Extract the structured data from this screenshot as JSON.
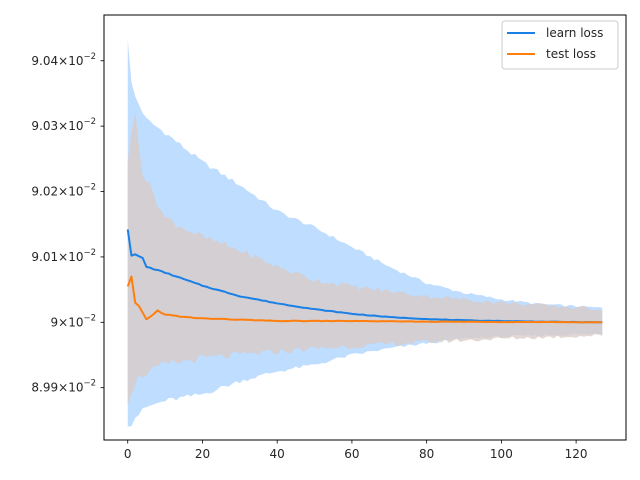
{
  "chart_data": {
    "type": "line",
    "title": "",
    "xlabel": "",
    "ylabel": "",
    "xlim": [
      -6.35,
      133.35
    ],
    "ylim": [
      0.08982,
      0.09047
    ],
    "x_ticks": [
      {
        "value": 0,
        "label": "0"
      },
      {
        "value": 20,
        "label": "20"
      },
      {
        "value": 40,
        "label": "40"
      },
      {
        "value": 60,
        "label": "60"
      },
      {
        "value": 80,
        "label": "80"
      },
      {
        "value": 100,
        "label": "100"
      },
      {
        "value": 120,
        "label": "120"
      }
    ],
    "y_ticks": [
      {
        "value": 0.0899,
        "mantissa": "8.99",
        "exp": "−2"
      },
      {
        "value": 0.09,
        "mantissa": "9",
        "exp": "−2"
      },
      {
        "value": 0.0901,
        "mantissa": "9.01",
        "exp": "−2"
      },
      {
        "value": 0.0902,
        "mantissa": "9.02",
        "exp": "−2"
      },
      {
        "value": 0.0903,
        "mantissa": "9.03",
        "exp": "−2"
      },
      {
        "value": 0.0904,
        "mantissa": "9.04",
        "exp": "−2"
      }
    ],
    "x_start": 0,
    "x_end": 127,
    "series": [
      {
        "name": "learn loss",
        "color": "#1f77b4",
        "line_color": "#1a80e6",
        "band_color": "#a9d2ff",
        "knots": [
          [
            0,
            0.090142
          ],
          [
            1,
            0.090102
          ],
          [
            2,
            0.090104
          ],
          [
            4,
            0.090098
          ],
          [
            5,
            0.090085
          ],
          [
            10,
            0.090076
          ],
          [
            20,
            0.090056
          ],
          [
            30,
            0.09004
          ],
          [
            40,
            0.090029
          ],
          [
            50,
            0.09002
          ],
          [
            60,
            0.090013
          ],
          [
            70,
            0.090008
          ],
          [
            80,
            0.090005
          ],
          [
            90,
            0.090003
          ],
          [
            100,
            0.090002
          ],
          [
            110,
            0.090001
          ],
          [
            127,
            0.09
          ]
        ],
        "band_knots": [
          [
            0,
            0.090435,
            0.089845
          ],
          [
            1,
            0.090365,
            0.089845
          ],
          [
            2,
            0.090345,
            0.089855
          ],
          [
            5,
            0.09031,
            0.08987
          ],
          [
            10,
            0.09029,
            0.08988
          ],
          [
            20,
            0.090245,
            0.08989
          ],
          [
            30,
            0.09021,
            0.08991
          ],
          [
            40,
            0.09017,
            0.089925
          ],
          [
            50,
            0.090145,
            0.089935
          ],
          [
            60,
            0.090115,
            0.08995
          ],
          [
            70,
            0.090085,
            0.08996
          ],
          [
            80,
            0.09006,
            0.089968
          ],
          [
            90,
            0.090045,
            0.089975
          ],
          [
            100,
            0.090035,
            0.089978
          ],
          [
            110,
            0.090028,
            0.08998
          ],
          [
            127,
            0.090022,
            0.089982
          ]
        ]
      },
      {
        "name": "test loss",
        "color": "#ff7f0e",
        "line_color": "#ff7f0e",
        "band_color": "#d9c9c4",
        "knots": [
          [
            0,
            0.090055
          ],
          [
            1,
            0.09007
          ],
          [
            2,
            0.09003
          ],
          [
            3,
            0.090025
          ],
          [
            5,
            0.090005
          ],
          [
            6,
            0.090008
          ],
          [
            8,
            0.090018
          ],
          [
            10,
            0.090012
          ],
          [
            15,
            0.090008
          ],
          [
            20,
            0.090006
          ],
          [
            30,
            0.090004
          ],
          [
            40,
            0.090002
          ],
          [
            60,
            0.090002
          ],
          [
            80,
            0.090001
          ],
          [
            127,
            0.09
          ]
        ],
        "band_knots": [
          [
            0,
            0.09025,
            0.08988
          ],
          [
            2,
            0.09032,
            0.08991
          ],
          [
            4,
            0.09023,
            0.08992
          ],
          [
            10,
            0.09016,
            0.089935
          ],
          [
            20,
            0.09013,
            0.089945
          ],
          [
            30,
            0.09011,
            0.08995
          ],
          [
            40,
            0.090085,
            0.089955
          ],
          [
            50,
            0.090065,
            0.08996
          ],
          [
            60,
            0.090055,
            0.089963
          ],
          [
            80,
            0.09004,
            0.08997
          ],
          [
            100,
            0.09003,
            0.089975
          ],
          [
            127,
            0.09002,
            0.08998
          ]
        ]
      }
    ],
    "legend": {
      "position": "top-right",
      "entries": [
        "learn loss",
        "test loss"
      ]
    },
    "grid": false
  }
}
